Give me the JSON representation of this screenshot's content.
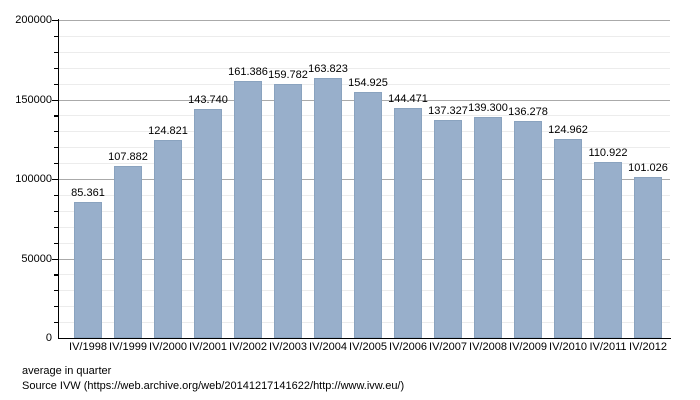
{
  "chart_data": {
    "type": "bar",
    "title": "",
    "xlabel": "",
    "ylabel": "",
    "categories": [
      "IV/1998",
      "IV/1999",
      "IV/2000",
      "IV/2001",
      "IV/2002",
      "IV/2003",
      "IV/2004",
      "IV/2005",
      "IV/2006",
      "IV/2007",
      "IV/2008",
      "IV/2009",
      "IV/2010",
      "IV/2011",
      "IV/2012"
    ],
    "values": [
      85361,
      107882,
      124821,
      143740,
      161386,
      159782,
      163823,
      154925,
      144471,
      137327,
      139300,
      136278,
      124962,
      110922,
      101026
    ],
    "value_labels": [
      "85.361",
      "107.882",
      "124.821",
      "143.740",
      "161.386",
      "159.782",
      "163.823",
      "154.925",
      "144.471",
      "137.327",
      "139.300",
      "136.278",
      "124.962",
      "110.922",
      "101.026"
    ],
    "ylim": [
      0,
      200000
    ],
    "y_major_step": 50000,
    "y_minor_step": 10000,
    "y_tick_labels": [
      "0",
      "50000",
      "100000",
      "150000",
      "200000"
    ],
    "grid": true,
    "legend_position": "none",
    "colors": {
      "bar_fill": "#98AFCB",
      "bar_border": "#8AA3BF",
      "major_grid": "#AAAAAA",
      "minor_grid": "#ECECEC",
      "axis": "#000000",
      "text": "#000000"
    }
  },
  "footer": {
    "line1": "average in quarter",
    "line2": "Source IVW (https://web.archive.org/web/20141217141622/http://www.ivw.eu/)"
  }
}
